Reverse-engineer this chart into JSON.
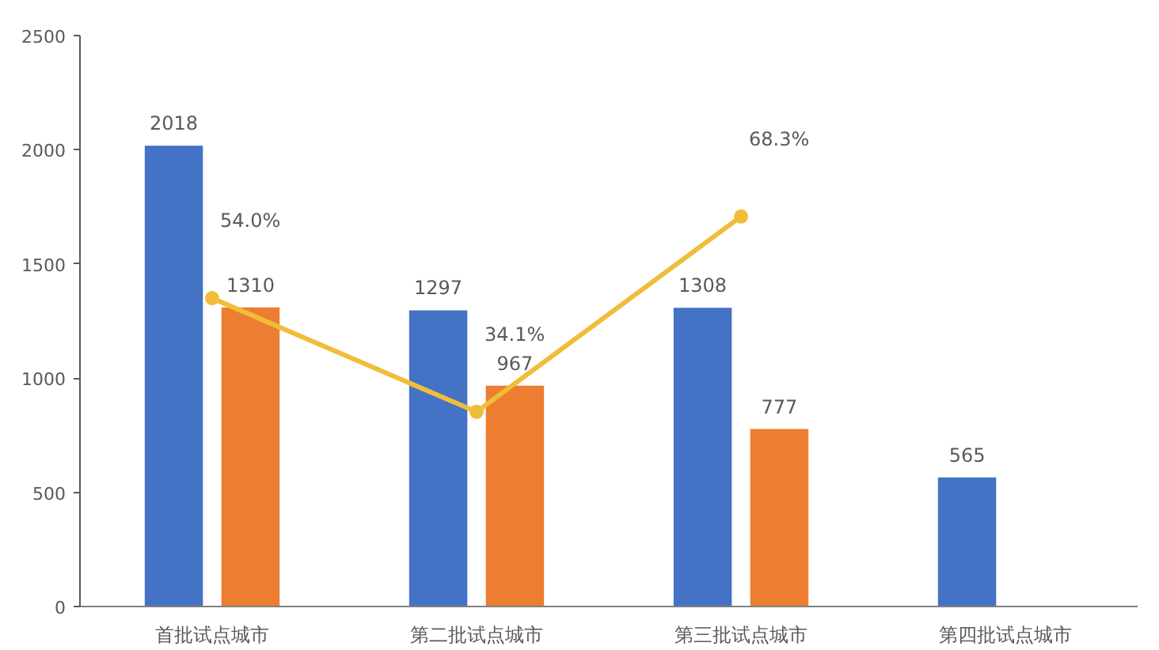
{
  "chart_data": {
    "type": "bar",
    "categories": [
      "首批试点城市",
      "第二批试点城市",
      "第三批试点城市",
      "第四批试点城市"
    ],
    "series": [
      {
        "color": "#4472c4",
        "values": [
          2018,
          1297,
          1308,
          565
        ],
        "value_labels": [
          "2018",
          "1297",
          "1308",
          "565"
        ]
      },
      {
        "color": "#ed7d31",
        "values": [
          1310,
          967,
          777,
          null
        ],
        "value_labels": [
          "1310",
          "967",
          "777",
          null
        ]
      },
      {
        "type": "line",
        "axis": "y2",
        "marker": "circle",
        "color": "#f0bd3a",
        "values": [
          54.0,
          34.1,
          68.3,
          null
        ],
        "value_labels": [
          "54.0%",
          "34.1%",
          "68.3%",
          null
        ]
      }
    ],
    "ylim": [
      0,
      2500
    ],
    "yticks": [
      0,
      500,
      1000,
      1500,
      2000,
      2500
    ],
    "y2lim": [
      0,
      100
    ],
    "grid": false
  }
}
